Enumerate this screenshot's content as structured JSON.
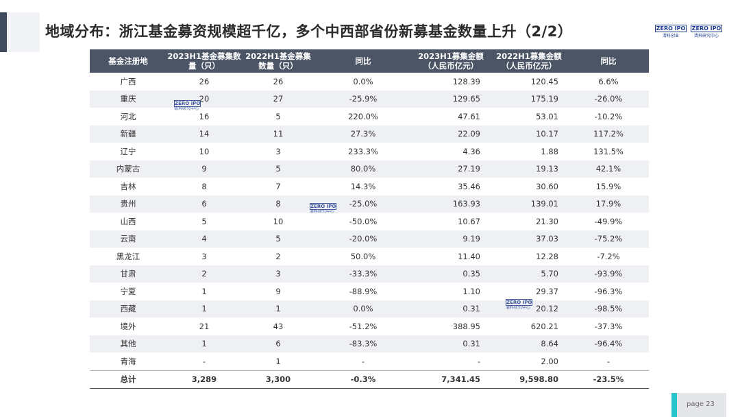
{
  "title": "地域分布：浙江基金募资规模超千亿，多个中西部省份新募基金数量上升（2/2）",
  "logos": [
    {
      "brand": "ZERO IPO",
      "sub": "清科创业"
    },
    {
      "brand": "ZERO IPO",
      "sub": "清科研究中心"
    }
  ],
  "watermark": {
    "brand": "ZERO IPO",
    "sub": "清科研究中心"
  },
  "table": {
    "headers": [
      "基金注册地",
      "2023H1基金募集数量（只）",
      "2022H1基金募集数量（只）",
      "同比",
      "2023H1募集金额（人民币亿元）",
      "2022H1募集金额（人民币亿元）",
      "同比"
    ],
    "rows": [
      [
        "广西",
        "26",
        "26",
        "0.0%",
        "128.39",
        "120.45",
        "6.6%"
      ],
      [
        "重庆",
        "20",
        "27",
        "-25.9%",
        "129.65",
        "175.19",
        "-26.0%"
      ],
      [
        "河北",
        "16",
        "5",
        "220.0%",
        "47.61",
        "53.01",
        "-10.2%"
      ],
      [
        "新疆",
        "14",
        "11",
        "27.3%",
        "22.09",
        "10.17",
        "117.2%"
      ],
      [
        "辽宁",
        "10",
        "3",
        "233.3%",
        "4.36",
        "1.88",
        "131.5%"
      ],
      [
        "内蒙古",
        "9",
        "5",
        "80.0%",
        "27.19",
        "19.13",
        "42.1%"
      ],
      [
        "吉林",
        "8",
        "7",
        "14.3%",
        "35.46",
        "30.60",
        "15.9%"
      ],
      [
        "贵州",
        "6",
        "8",
        "-25.0%",
        "163.93",
        "139.01",
        "17.9%"
      ],
      [
        "山西",
        "5",
        "10",
        "-50.0%",
        "10.67",
        "21.30",
        "-49.9%"
      ],
      [
        "云南",
        "4",
        "5",
        "-20.0%",
        "9.19",
        "37.03",
        "-75.2%"
      ],
      [
        "黑龙江",
        "3",
        "2",
        "50.0%",
        "11.40",
        "12.28",
        "-7.2%"
      ],
      [
        "甘肃",
        "2",
        "3",
        "-33.3%",
        "0.35",
        "5.70",
        "-93.9%"
      ],
      [
        "宁夏",
        "1",
        "9",
        "-88.9%",
        "1.10",
        "29.37",
        "-96.3%"
      ],
      [
        "西藏",
        "1",
        "1",
        "0.0%",
        "0.31",
        "20.12",
        "-98.5%"
      ],
      [
        "境外",
        "21",
        "43",
        "-51.2%",
        "388.95",
        "620.21",
        "-37.3%"
      ],
      [
        "其他",
        "1",
        "6",
        "-83.3%",
        "0.31",
        "8.64",
        "-96.4%"
      ],
      [
        "青海",
        "-",
        "1",
        "-",
        "-",
        "2.00",
        "-"
      ]
    ],
    "total": [
      "总计",
      "3,289",
      "3,300",
      "-0.3%",
      "7,341.45",
      "9,598.80",
      "-23.5%"
    ]
  },
  "page": "page  23"
}
